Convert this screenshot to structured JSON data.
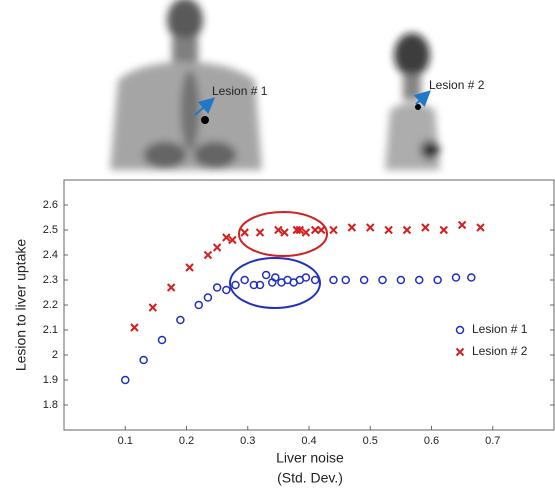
{
  "chart_data": {
    "type": "scatter",
    "annotations": [
      "Lesion # 1",
      "Lesion # 2"
    ],
    "xlabel": [
      "Liver noise",
      "(Std. Dev.)"
    ],
    "ylabel": "Lesion to liver uptake",
    "xlim": [
      0,
      0.8
    ],
    "xticks": [
      0.1,
      0.2,
      0.3,
      0.4,
      0.5,
      0.6,
      0.7
    ],
    "ylim": [
      1.7,
      2.7
    ],
    "yticks": [
      1.8,
      1.9,
      2.0,
      2.1,
      2.2,
      2.3,
      2.4,
      2.5,
      2.6
    ],
    "legend": "right",
    "series": [
      {
        "name": "Lesion # 1",
        "color": "#1f2fbf",
        "marker": "circle",
        "x": [
          0.1,
          0.13,
          0.16,
          0.19,
          0.22,
          0.235,
          0.25,
          0.265,
          0.28,
          0.295,
          0.31,
          0.32,
          0.33,
          0.34,
          0.345,
          0.355,
          0.365,
          0.375,
          0.385,
          0.395,
          0.41,
          0.44,
          0.46,
          0.49,
          0.52,
          0.55,
          0.58,
          0.61,
          0.64,
          0.665
        ],
        "values": [
          1.9,
          1.98,
          2.06,
          2.14,
          2.2,
          2.23,
          2.27,
          2.26,
          2.28,
          2.3,
          2.28,
          2.28,
          2.32,
          2.29,
          2.31,
          2.29,
          2.3,
          2.29,
          2.3,
          2.31,
          2.3,
          2.3,
          2.3,
          2.3,
          2.3,
          2.3,
          2.3,
          2.3,
          2.31,
          2.31
        ]
      },
      {
        "name": "Lesion # 2",
        "color": "#d42020",
        "marker": "x",
        "x": [
          0.115,
          0.145,
          0.175,
          0.205,
          0.235,
          0.25,
          0.265,
          0.275,
          0.295,
          0.32,
          0.35,
          0.36,
          0.38,
          0.385,
          0.395,
          0.41,
          0.42,
          0.44,
          0.47,
          0.5,
          0.53,
          0.56,
          0.59,
          0.62,
          0.65,
          0.68
        ],
        "values": [
          2.11,
          2.19,
          2.27,
          2.35,
          2.4,
          2.43,
          2.47,
          2.46,
          2.49,
          2.49,
          2.5,
          2.49,
          2.5,
          2.5,
          2.49,
          2.5,
          2.5,
          2.5,
          2.51,
          2.51,
          2.5,
          2.5,
          2.51,
          2.5,
          2.52,
          2.51
        ]
      }
    ]
  }
}
